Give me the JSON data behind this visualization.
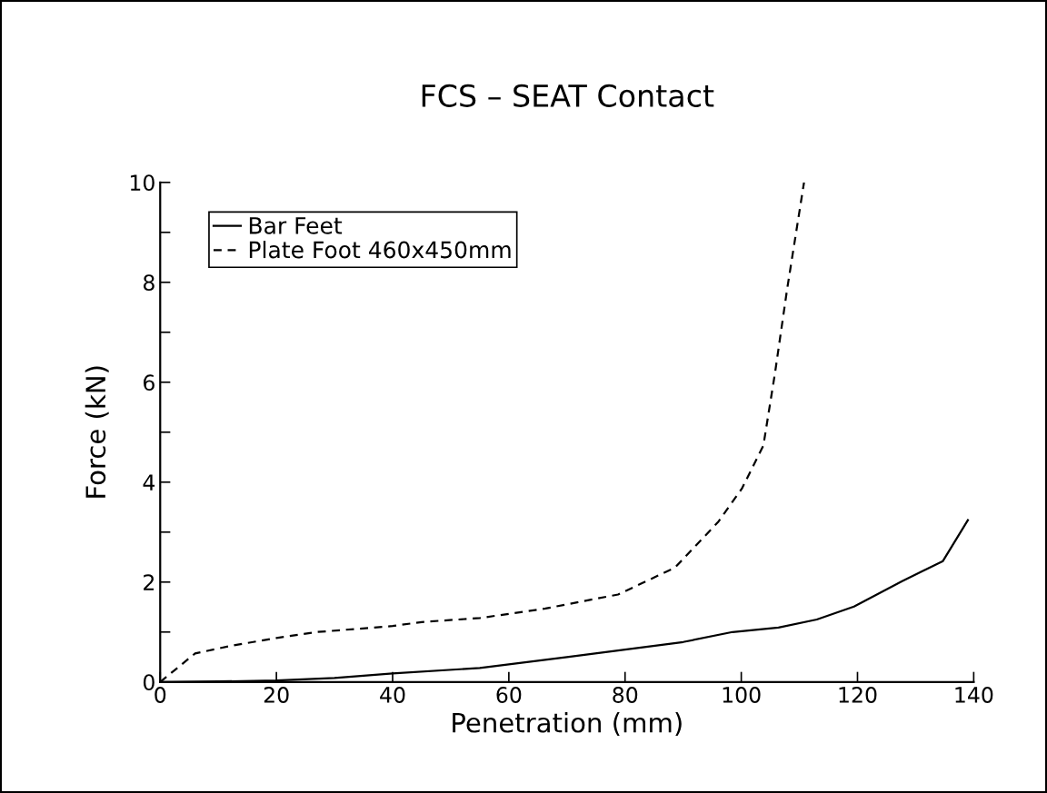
{
  "chart_data": {
    "type": "line",
    "title": "FCS – SEAT Contact",
    "xlabel": "Penetration (mm)",
    "ylabel": "Force (kN)",
    "series": [
      {
        "name": "Bar Feet",
        "color": "#000000",
        "line_style": "solid",
        "x": [
          0,
          10,
          20,
          30,
          40,
          55,
          70,
          80,
          90,
          98.5,
          106.4,
          113,
          119.4,
          127.7,
          134.7,
          139.0
        ],
        "values": [
          0,
          0.01,
          0.03,
          0.08,
          0.17,
          0.28,
          0.5,
          0.65,
          0.8,
          1.0,
          1.09,
          1.25,
          1.51,
          2.02,
          2.42,
          3.24
        ]
      },
      {
        "name": "Plate Foot 460x450mm",
        "color": "#000000",
        "line_style": "dashed",
        "x": [
          0,
          6,
          12,
          20,
          27,
          40,
          45,
          55,
          66.3,
          72,
          78.8,
          88.6,
          96,
          100.1,
          103.8,
          105.8,
          107.9,
          110.8
        ],
        "values": [
          0,
          0.57,
          0.72,
          0.88,
          1.0,
          1.12,
          1.2,
          1.28,
          1.47,
          1.6,
          1.75,
          2.29,
          3.2,
          3.87,
          4.73,
          6.18,
          7.87,
          10.0
        ]
      }
    ],
    "xlim": [
      0,
      140
    ],
    "xticks": [
      0,
      20,
      40,
      60,
      80,
      100,
      120,
      140
    ],
    "ylim": [
      0,
      10
    ],
    "yticks": [
      0,
      {
        "value": 1,
        "label": null
      },
      2,
      {
        "value": 3,
        "label": null
      },
      4,
      {
        "value": 5,
        "label": null
      },
      6,
      {
        "value": 7,
        "label": null
      },
      8,
      {
        "value": 9,
        "label": null
      },
      10
    ],
    "grid": false,
    "legend": "top left",
    "marker": "none"
  }
}
